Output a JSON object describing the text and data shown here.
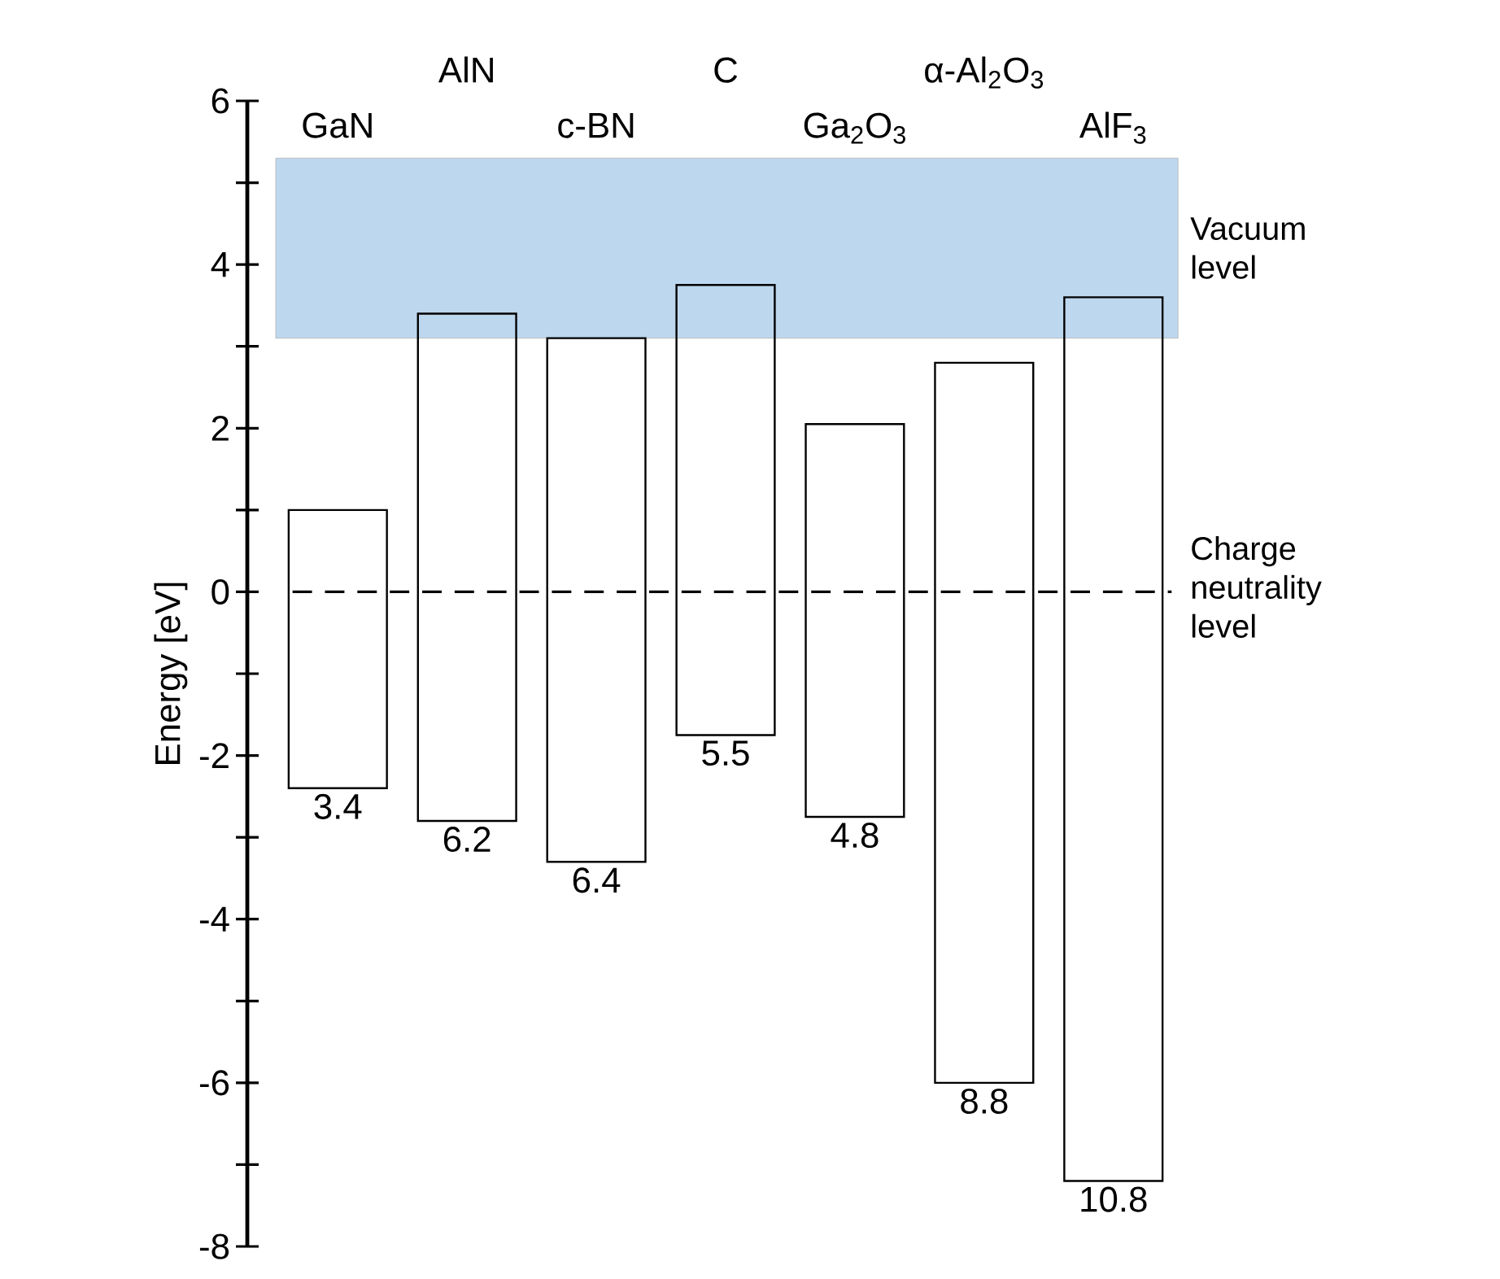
{
  "chart_data": {
    "type": "bar",
    "ylabel": "Energy [eV]",
    "categories": [
      "GaN",
      "AlN",
      "c-BN",
      "C",
      "Ga$_{2}$O$_{3}$",
      "α-Al$_{2}$O$_{3}$",
      "AlF$_{3}$"
    ],
    "base": [
      -2.4,
      -2.8,
      -3.3,
      -1.75,
      -2.75,
      -6.0,
      -7.2
    ],
    "values": [
      3.4,
      6.2,
      6.4,
      5.5,
      4.8,
      8.8,
      10.8
    ],
    "value_labels": [
      "3.4",
      "6.2",
      "6.4",
      "5.5",
      "4.8",
      "8.8",
      "10.8"
    ],
    "color": "#000000",
    "ylim": [
      -8,
      6
    ],
    "yticks": [
      -8,
      {
        "value": -7,
        "label": null
      },
      -6,
      {
        "value": -5,
        "label": null
      },
      -4,
      {
        "value": -3,
        "label": null
      },
      -2,
      {
        "value": -1,
        "label": null
      },
      0,
      {
        "value": 1,
        "label": null
      },
      2,
      {
        "value": 3,
        "label": null
      },
      4,
      {
        "value": 5,
        "label": null
      },
      6
    ],
    "bands": [
      {
        "axis": "y",
        "from": 3.1,
        "to": 5.3,
        "label": "Vacuum level",
        "color": "#bdd7ee"
      }
    ],
    "ref_lines": [
      {
        "axis": "y",
        "value": 0,
        "label": "Charge neutrality level",
        "color": "#000000",
        "line_style": "dashed"
      }
    ],
    "grid": false
  }
}
